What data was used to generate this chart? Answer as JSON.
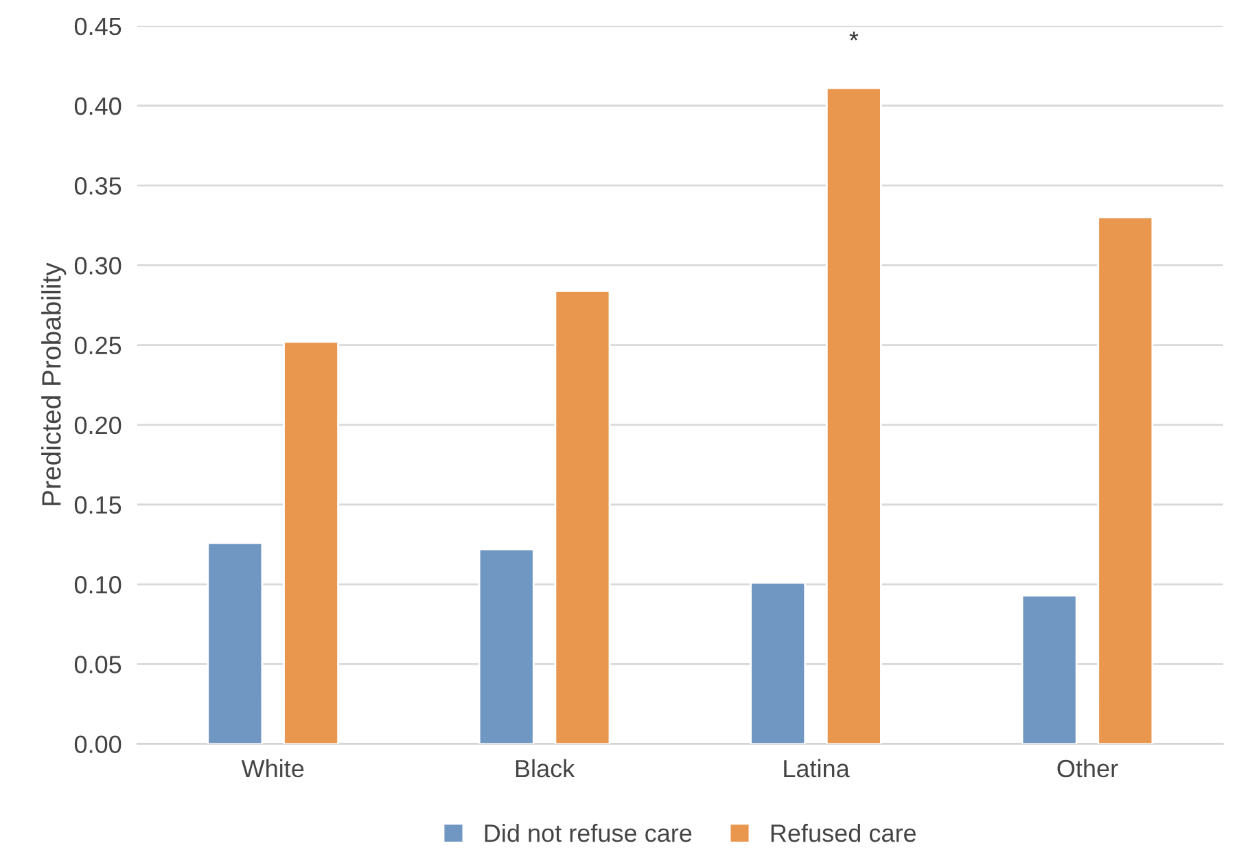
{
  "chart_data": {
    "type": "bar",
    "ylabel": "Predicted Probability",
    "categories": [
      "White",
      "Black",
      "Latina",
      "Other"
    ],
    "series": [
      {
        "name": "Did not refuse care",
        "color": "#7096c2",
        "values": [
          0.126,
          0.122,
          0.101,
          0.093
        ]
      },
      {
        "name": "Refused care",
        "color": "#e9974f",
        "values": [
          0.252,
          0.284,
          0.411,
          0.33
        ]
      }
    ],
    "ylim": [
      0,
      0.45
    ],
    "yticks": [
      {
        "value": 0,
        "label": "0.00"
      },
      {
        "value": 0.05,
        "label": "0.05"
      },
      {
        "value": 0.1,
        "label": "0.10"
      },
      {
        "value": 0.15,
        "label": "0.15"
      },
      {
        "value": 0.2,
        "label": "0.20"
      },
      {
        "value": 0.25,
        "label": "0.25"
      },
      {
        "value": 0.3,
        "label": "0.30"
      },
      {
        "value": 0.35,
        "label": "0.35"
      },
      {
        "value": 0.4,
        "label": "0.40"
      },
      {
        "value": 0.45,
        "label": "0.45"
      }
    ],
    "grid": "y",
    "legend": "bottom",
    "annotations": [
      "*"
    ]
  }
}
